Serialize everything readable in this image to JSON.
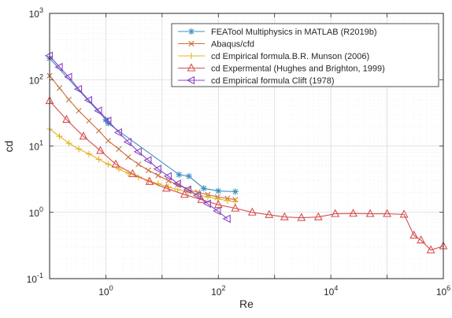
{
  "chart_data": {
    "type": "line",
    "title": "",
    "xlabel": "Re",
    "ylabel": "cd",
    "xscale": "log",
    "yscale": "log",
    "xlim": [
      0.1,
      1000000
    ],
    "ylim": [
      0.1,
      1000
    ],
    "grid": true,
    "legend_position": "top-right",
    "x_ticks": [
      {
        "value": 1,
        "base": "10",
        "exp": "0"
      },
      {
        "value": 100,
        "base": "10",
        "exp": "2"
      },
      {
        "value": 10000,
        "base": "10",
        "exp": "4"
      },
      {
        "value": 1000000,
        "base": "10",
        "exp": "6"
      }
    ],
    "y_ticks": [
      {
        "value": 0.1,
        "base": "10",
        "exp": "-1"
      },
      {
        "value": 1,
        "base": "10",
        "exp": "0"
      },
      {
        "value": 10,
        "base": "10",
        "exp": "1"
      },
      {
        "value": 100,
        "base": "10",
        "exp": "2"
      },
      {
        "value": 1000,
        "base": "10",
        "exp": "3"
      }
    ],
    "series": [
      {
        "name": "FEATool Multiphysics in MATLAB (R2019b)",
        "color": "#3a8fc4",
        "marker": "asterisk",
        "x": [
          0.1,
          1,
          1.1,
          20,
          30,
          55,
          100,
          200
        ],
        "y": [
          210,
          25,
          22,
          3.7,
          3.5,
          2.3,
          2.1,
          2.05
        ]
      },
      {
        "name": "Abaqus/cfd",
        "color": "#c9703c",
        "marker": "x",
        "x": [
          0.1,
          0.15,
          0.22,
          0.33,
          0.5,
          0.75,
          1.1,
          1.7,
          2.5,
          3.8,
          5.7,
          8.5,
          13,
          19,
          29,
          43,
          65,
          97,
          145,
          200
        ],
        "y": [
          115,
          75,
          50,
          34,
          24,
          17,
          12,
          9,
          6.8,
          5.3,
          4.3,
          3.6,
          3.0,
          2.6,
          2.2,
          2.0,
          1.85,
          1.7,
          1.62,
          1.55
        ]
      },
      {
        "name": "cd Empirical formula.B.R. Munson (2006)",
        "color": "#e3b421",
        "marker": "plus",
        "x": [
          0.1,
          0.15,
          0.22,
          0.33,
          0.5,
          0.75,
          1.1,
          1.7,
          2.5,
          3.8,
          5.7,
          8.5,
          13,
          19,
          29,
          43,
          65,
          97,
          145,
          200
        ],
        "y": [
          18,
          14,
          11,
          9,
          7.6,
          6.3,
          5.3,
          4.5,
          3.9,
          3.4,
          3.0,
          2.7,
          2.4,
          2.2,
          2.0,
          1.85,
          1.7,
          1.6,
          1.5,
          1.45
        ]
      },
      {
        "name": "cd Expermental (Hughes and Brighton, 1999)",
        "color": "#d84f4f",
        "marker": "triangle-up",
        "x": [
          0.1,
          0.2,
          0.4,
          0.8,
          1.5,
          3,
          6,
          12,
          25,
          50,
          100,
          200,
          400,
          800,
          1500,
          3000,
          6000,
          12000,
          25000,
          50000,
          100000,
          200000,
          300000,
          400000,
          600000,
          1000000
        ],
        "y": [
          48,
          25,
          14,
          8.5,
          5.3,
          3.8,
          2.9,
          2.3,
          1.85,
          1.55,
          1.3,
          1.15,
          1.0,
          0.92,
          0.85,
          0.83,
          0.85,
          0.95,
          0.96,
          0.95,
          0.95,
          0.93,
          0.45,
          0.38,
          0.27,
          0.31
        ]
      },
      {
        "name": "cd Empirical formula  Clift (1978)",
        "color": "#8a46c4",
        "marker": "triangle-left",
        "x": [
          0.1,
          0.15,
          0.22,
          0.33,
          0.5,
          0.75,
          1.1,
          1.7,
          2.5,
          3.8,
          5.7,
          8.5,
          13,
          19,
          29,
          43,
          65,
          97,
          145
        ],
        "y": [
          230,
          155,
          110,
          72,
          49,
          34,
          24,
          16,
          11.5,
          8.2,
          6.1,
          4.5,
          3.5,
          2.7,
          2.2,
          1.8,
          1.35,
          1.05,
          0.8
        ]
      }
    ]
  }
}
